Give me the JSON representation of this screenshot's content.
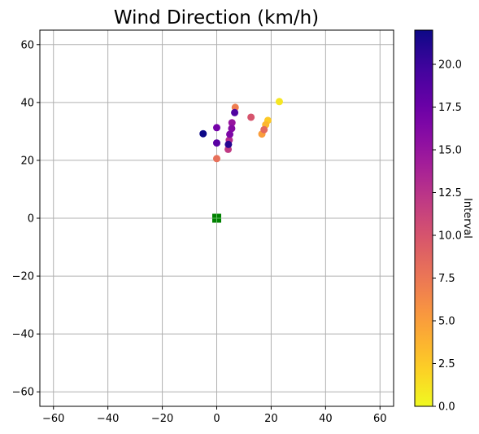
{
  "chart_data": {
    "type": "scatter",
    "title": "Wind Direction (km/h)",
    "xlabel": "",
    "ylabel": "",
    "xlim": [
      -65,
      65
    ],
    "ylim": [
      -65,
      65
    ],
    "xticks": [
      -60,
      -40,
      -20,
      0,
      20,
      40,
      60
    ],
    "yticks": [
      -60,
      -40,
      -20,
      0,
      20,
      40,
      60
    ],
    "grid": true,
    "colorbar": {
      "label": "Interval",
      "colormap": "plasma_r",
      "range": [
        0,
        22
      ],
      "ticks": [
        0.0,
        2.5,
        5.0,
        7.5,
        10.0,
        12.5,
        15.0,
        17.5,
        20.0
      ]
    },
    "origin_marker": {
      "x": 0,
      "y": 0,
      "shape": "square",
      "color": "#008000"
    },
    "points": [
      {
        "x": 23.0,
        "y": 40.3,
        "c": 1.0
      },
      {
        "x": 18.8,
        "y": 33.8,
        "c": 2.5
      },
      {
        "x": 18.0,
        "y": 32.3,
        "c": 3.5
      },
      {
        "x": 16.6,
        "y": 29.1,
        "c": 5.0
      },
      {
        "x": 17.4,
        "y": 30.6,
        "c": 8.5
      },
      {
        "x": 6.8,
        "y": 38.3,
        "c": 7.0
      },
      {
        "x": 12.6,
        "y": 34.9,
        "c": 10.0
      },
      {
        "x": 0.0,
        "y": 20.6,
        "c": 8.0
      },
      {
        "x": 4.2,
        "y": 23.8,
        "c": 12.0
      },
      {
        "x": 4.6,
        "y": 27.0,
        "c": 13.0
      },
      {
        "x": 5.6,
        "y": 33.0,
        "c": 15.0
      },
      {
        "x": 5.5,
        "y": 31.0,
        "c": 16.0
      },
      {
        "x": 4.8,
        "y": 29.0,
        "c": 16.5
      },
      {
        "x": 6.6,
        "y": 36.5,
        "c": 19.0
      },
      {
        "x": 0.0,
        "y": 31.3,
        "c": 17.0
      },
      {
        "x": 0.0,
        "y": 26.0,
        "c": 18.5
      },
      {
        "x": 4.3,
        "y": 25.5,
        "c": 21.0
      },
      {
        "x": -5.0,
        "y": 29.2,
        "c": 22.0
      }
    ]
  }
}
